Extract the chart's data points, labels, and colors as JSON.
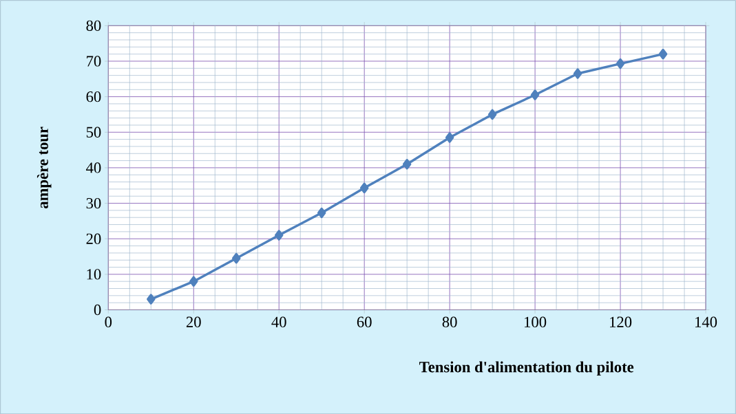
{
  "chart_data": {
    "type": "line",
    "xlabel": "Tension d'alimentation du pilote",
    "ylabel": "ampère tour",
    "x": [
      10,
      20,
      30,
      40,
      50,
      60,
      70,
      80,
      90,
      100,
      110,
      120,
      130
    ],
    "series": [
      {
        "color": "#4f81bd",
        "values": [
          3,
          8,
          14.5,
          21,
          27.3,
          34.3,
          41,
          48.5,
          55,
          60.5,
          66.5,
          69.3,
          72
        ]
      }
    ],
    "xlim": [
      0,
      140
    ],
    "ylim": [
      0,
      80
    ],
    "xticks": [
      0,
      {
        "value": 5,
        "label": null
      },
      {
        "value": 10,
        "label": null
      },
      {
        "value": 15,
        "label": null
      },
      20,
      {
        "value": 25,
        "label": null
      },
      {
        "value": 30,
        "label": null
      },
      {
        "value": 35,
        "label": null
      },
      40,
      {
        "value": 45,
        "label": null
      },
      {
        "value": 50,
        "label": null
      },
      {
        "value": 55,
        "label": null
      },
      60,
      {
        "value": 65,
        "label": null
      },
      {
        "value": 70,
        "label": null
      },
      {
        "value": 75,
        "label": null
      },
      80,
      {
        "value": 85,
        "label": null
      },
      {
        "value": 90,
        "label": null
      },
      {
        "value": 95,
        "label": null
      },
      100,
      {
        "value": 105,
        "label": null
      },
      {
        "value": 110,
        "label": null
      },
      {
        "value": 115,
        "label": null
      },
      120,
      {
        "value": 125,
        "label": null
      },
      {
        "value": 130,
        "label": null
      },
      {
        "value": 135,
        "label": null
      },
      140
    ],
    "yticks": [
      0,
      {
        "value": 2,
        "label": null
      },
      {
        "value": 4,
        "label": null
      },
      {
        "value": 6,
        "label": null
      },
      {
        "value": 8,
        "label": null
      },
      10,
      {
        "value": 12,
        "label": null
      },
      {
        "value": 14,
        "label": null
      },
      {
        "value": 16,
        "label": null
      },
      {
        "value": 18,
        "label": null
      },
      20,
      {
        "value": 22,
        "label": null
      },
      {
        "value": 24,
        "label": null
      },
      {
        "value": 26,
        "label": null
      },
      {
        "value": 28,
        "label": null
      },
      30,
      {
        "value": 32,
        "label": null
      },
      {
        "value": 34,
        "label": null
      },
      {
        "value": 36,
        "label": null
      },
      {
        "value": 38,
        "label": null
      },
      40,
      {
        "value": 42,
        "label": null
      },
      {
        "value": 44,
        "label": null
      },
      {
        "value": 46,
        "label": null
      },
      {
        "value": 48,
        "label": null
      },
      50,
      {
        "value": 52,
        "label": null
      },
      {
        "value": 54,
        "label": null
      },
      {
        "value": 56,
        "label": null
      },
      {
        "value": 58,
        "label": null
      },
      60,
      {
        "value": 62,
        "label": null
      },
      {
        "value": 64,
        "label": null
      },
      {
        "value": 66,
        "label": null
      },
      {
        "value": 68,
        "label": null
      },
      70,
      {
        "value": 72,
        "label": null
      },
      {
        "value": 74,
        "label": null
      },
      {
        "value": 76,
        "label": null
      },
      {
        "value": 78,
        "label": null
      },
      80
    ],
    "grid": true,
    "marker": "diamond",
    "line_style": "solid"
  }
}
